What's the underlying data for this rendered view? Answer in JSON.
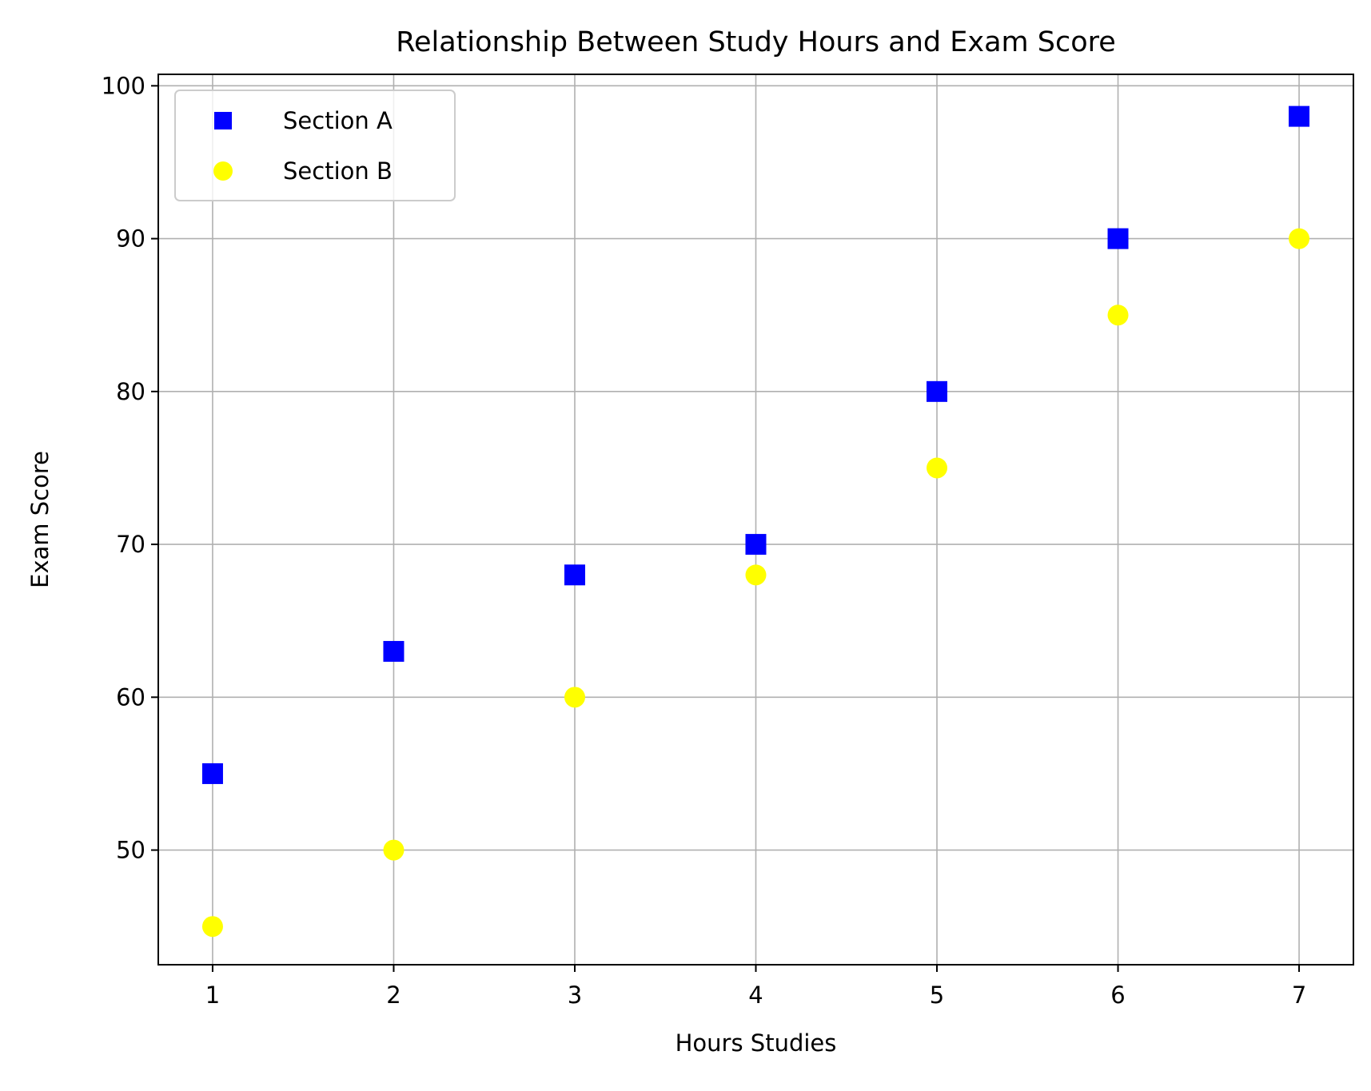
{
  "chart_data": {
    "type": "scatter",
    "title": "Relationship Between Study Hours and Exam Score",
    "xlabel": "Hours Studies",
    "ylabel": "Exam Score",
    "xlim": [
      0.7,
      7.3
    ],
    "ylim": [
      42.5,
      100.75
    ],
    "xticks": [
      1,
      2,
      3,
      4,
      5,
      6,
      7
    ],
    "yticks": [
      50,
      60,
      70,
      80,
      90,
      100
    ],
    "grid": true,
    "legend_position": "upper-left",
    "series": [
      {
        "name": "Section A",
        "marker": "square",
        "color": "#0000ff",
        "x": [
          1,
          2,
          3,
          4,
          5,
          6,
          7
        ],
        "y": [
          55,
          63,
          68,
          70,
          80,
          90,
          98
        ]
      },
      {
        "name": "Section B",
        "marker": "circle",
        "color": "#ffff00",
        "x": [
          1,
          2,
          3,
          4,
          5,
          6,
          7
        ],
        "y": [
          45,
          50,
          60,
          68,
          75,
          85,
          90
        ]
      }
    ]
  }
}
